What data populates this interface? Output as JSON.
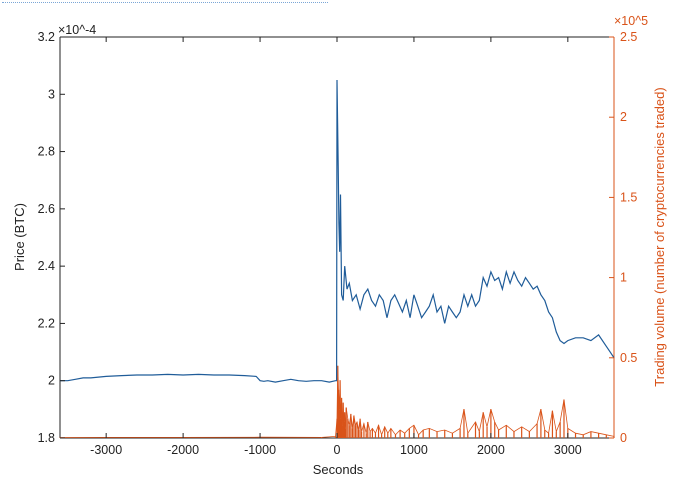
{
  "chart_data": {
    "type": "line",
    "title": "",
    "xlabel": "Seconds",
    "ylabel": "Price (BTC)",
    "ylabel_right": "Trading volume (number of cryptocurrencies traded)",
    "xlim": [
      -3600,
      3600
    ],
    "ylim": [
      1.8,
      3.2
    ],
    "ylim_right": [
      0,
      2.5
    ],
    "y_exponent_label": "×10^-4",
    "y_right_exponent_label": "×10^5",
    "x_ticks": [
      -3000,
      -2000,
      -1000,
      0,
      1000,
      2000,
      3000
    ],
    "x_tick_labels": [
      "-3000",
      "-2000",
      "-1000",
      "0",
      "1000",
      "2000",
      "3000"
    ],
    "y_ticks": [
      1.8,
      2,
      2.2,
      2.4,
      2.6,
      2.8,
      3,
      3.2
    ],
    "y_tick_labels": [
      "1.8",
      "2",
      "2.2",
      "2.4",
      "2.6",
      "2.8",
      "3",
      "3.2"
    ],
    "y_right_ticks": [
      0,
      0.5,
      1,
      1.5,
      2,
      2.5
    ],
    "y_right_tick_labels": [
      "0",
      "0.5",
      "1",
      "1.5",
      "2",
      "2.5"
    ],
    "grid": false,
    "colors": {
      "price": "#1f5c99",
      "volume": "#d95319",
      "axis": "#222222"
    },
    "series": [
      {
        "axis": "left",
        "color": "#1f5c99",
        "x": [
          -3600,
          -3500,
          -3400,
          -3300,
          -3200,
          -3000,
          -2800,
          -2600,
          -2400,
          -2200,
          -2000,
          -1800,
          -1600,
          -1400,
          -1200,
          -1050,
          -1000,
          -950,
          -900,
          -800,
          -700,
          -600,
          -500,
          -400,
          -300,
          -200,
          -100,
          -20,
          -5,
          0,
          8,
          15,
          25,
          35,
          45,
          60,
          80,
          100,
          130,
          160,
          200,
          250,
          300,
          350,
          400,
          450,
          500,
          550,
          600,
          650,
          700,
          750,
          800,
          850,
          900,
          950,
          1000,
          1050,
          1100,
          1150,
          1200,
          1250,
          1300,
          1350,
          1400,
          1450,
          1500,
          1550,
          1600,
          1650,
          1700,
          1750,
          1800,
          1850,
          1900,
          1950,
          2000,
          2050,
          2100,
          2150,
          2200,
          2250,
          2300,
          2350,
          2400,
          2450,
          2500,
          2550,
          2600,
          2650,
          2700,
          2750,
          2800,
          2850,
          2900,
          2950,
          3000,
          3100,
          3200,
          3300,
          3400,
          3500,
          3550,
          3600
        ],
        "y": [
          2.0,
          2.0,
          2.005,
          2.01,
          2.01,
          2.015,
          2.018,
          2.02,
          2.02,
          2.022,
          2.02,
          2.022,
          2.02,
          2.02,
          2.018,
          2.015,
          2.0,
          1.998,
          2.0,
          1.995,
          2.0,
          2.005,
          2.0,
          1.998,
          2.0,
          2.0,
          1.995,
          2.0,
          2.0,
          3.05,
          2.9,
          2.75,
          2.55,
          2.45,
          2.65,
          2.3,
          2.28,
          2.4,
          2.32,
          2.34,
          2.28,
          2.3,
          2.25,
          2.3,
          2.32,
          2.28,
          2.26,
          2.3,
          2.28,
          2.22,
          2.28,
          2.3,
          2.27,
          2.24,
          2.28,
          2.22,
          2.3,
          2.26,
          2.22,
          2.24,
          2.26,
          2.3,
          2.24,
          2.26,
          2.2,
          2.26,
          2.24,
          2.22,
          2.24,
          2.3,
          2.26,
          2.3,
          2.26,
          2.28,
          2.36,
          2.33,
          2.38,
          2.35,
          2.36,
          2.32,
          2.38,
          2.34,
          2.38,
          2.35,
          2.33,
          2.36,
          2.34,
          2.32,
          2.33,
          2.3,
          2.28,
          2.24,
          2.22,
          2.17,
          2.14,
          2.13,
          2.14,
          2.15,
          2.15,
          2.14,
          2.16,
          2.12,
          2.1,
          2.08
        ]
      },
      {
        "axis": "right",
        "color": "#d95319",
        "x": [
          -3600,
          -3000,
          -2000,
          -1000,
          -200,
          -20,
          0,
          10,
          20,
          30,
          40,
          50,
          60,
          70,
          80,
          90,
          100,
          110,
          120,
          140,
          160,
          180,
          200,
          220,
          240,
          260,
          280,
          300,
          320,
          350,
          380,
          400,
          430,
          460,
          500,
          540,
          580,
          620,
          660,
          700,
          760,
          820,
          880,
          940,
          1000,
          1060,
          1120,
          1200,
          1300,
          1400,
          1500,
          1600,
          1650,
          1700,
          1800,
          1850,
          1900,
          1950,
          2000,
          2050,
          2100,
          2200,
          2300,
          2400,
          2500,
          2600,
          2650,
          2700,
          2750,
          2800,
          2850,
          2900,
          2950,
          3000,
          3100,
          3200,
          3300,
          3400,
          3500,
          3600
        ],
        "y": [
          0.003,
          0.004,
          0.004,
          0.005,
          0.004,
          0.01,
          0.12,
          0.45,
          0.3,
          0.18,
          0.36,
          0.12,
          0.25,
          0.08,
          0.22,
          0.1,
          0.16,
          0.06,
          0.19,
          0.12,
          0.08,
          0.15,
          0.06,
          0.14,
          0.08,
          0.1,
          0.05,
          0.12,
          0.04,
          0.09,
          0.03,
          0.1,
          0.04,
          0.06,
          0.03,
          0.08,
          0.02,
          0.07,
          0.03,
          0.06,
          0.02,
          0.05,
          0.03,
          0.06,
          0.08,
          0.02,
          0.05,
          0.06,
          0.04,
          0.05,
          0.03,
          0.06,
          0.18,
          0.03,
          0.1,
          0.04,
          0.16,
          0.07,
          0.18,
          0.1,
          0.05,
          0.08,
          0.04,
          0.07,
          0.04,
          0.09,
          0.18,
          0.05,
          0.03,
          0.17,
          0.04,
          0.1,
          0.24,
          0.06,
          0.03,
          0.02,
          0.04,
          0.03,
          0.02,
          0.01
        ]
      }
    ]
  }
}
